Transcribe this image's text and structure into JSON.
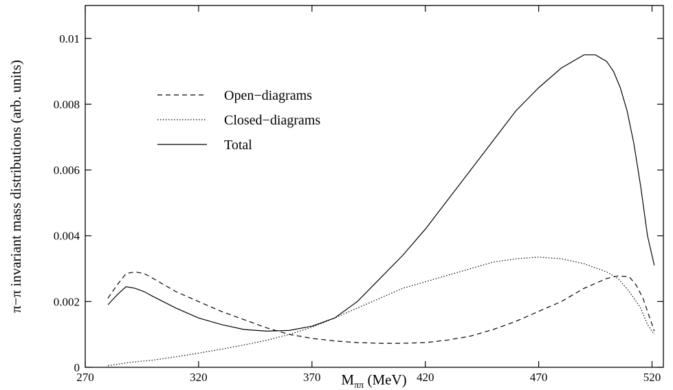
{
  "chart_data": {
    "type": "line",
    "xlabel_main": "M",
    "xlabel_sub": "ππ",
    "xlabel_unit": " (MeV)",
    "ylabel": "π−π invariant mass distributions (arb. units)",
    "xlim": [
      270,
      525
    ],
    "ylim": [
      0,
      0.011
    ],
    "x_ticks": [
      270,
      320,
      370,
      420,
      470,
      520
    ],
    "y_ticks": [
      0,
      0.002,
      0.004,
      0.006,
      0.008,
      0.01
    ],
    "y_tick_labels": [
      "0",
      "0.002",
      "0.004",
      "0.006",
      "0.008",
      "0.01"
    ],
    "grid": false,
    "legend_position": "upper-left",
    "series": [
      {
        "name": "Open−diagrams",
        "style": "dashed",
        "color": "#000000",
        "x": [
          280,
          284,
          288,
          292,
          296,
          300,
          310,
          320,
          330,
          340,
          350,
          360,
          370,
          380,
          390,
          400,
          410,
          420,
          430,
          440,
          450,
          460,
          470,
          480,
          490,
          500,
          505,
          510,
          513,
          516,
          519,
          521
        ],
        "y": [
          0.0021,
          0.0025,
          0.00285,
          0.0029,
          0.00285,
          0.0027,
          0.0023,
          0.002,
          0.0017,
          0.00145,
          0.0012,
          0.001,
          0.00088,
          0.0008,
          0.00075,
          0.00073,
          0.00073,
          0.00075,
          0.00083,
          0.00095,
          0.00115,
          0.0014,
          0.0017,
          0.002,
          0.0024,
          0.0027,
          0.00278,
          0.00275,
          0.0025,
          0.0021,
          0.0015,
          0.0011
        ]
      },
      {
        "name": "Closed−diagrams",
        "style": "dotted",
        "color": "#000000",
        "x": [
          280,
          290,
          300,
          310,
          320,
          330,
          340,
          350,
          360,
          370,
          380,
          390,
          400,
          410,
          420,
          430,
          440,
          450,
          460,
          470,
          480,
          490,
          500,
          505,
          510,
          515,
          518,
          521
        ],
        "y": [
          5e-05,
          0.00015,
          0.00022,
          0.00032,
          0.00043,
          0.00055,
          0.00068,
          0.00082,
          0.001,
          0.00122,
          0.0015,
          0.0018,
          0.0021,
          0.0024,
          0.0026,
          0.0028,
          0.003,
          0.0032,
          0.0033,
          0.00335,
          0.0033,
          0.00315,
          0.0029,
          0.0027,
          0.0023,
          0.0018,
          0.0013,
          0.001
        ]
      },
      {
        "name": "Total",
        "style": "solid",
        "color": "#000000",
        "x": [
          280,
          284,
          288,
          292,
          296,
          300,
          310,
          320,
          330,
          340,
          350,
          360,
          370,
          380,
          390,
          400,
          410,
          420,
          430,
          440,
          450,
          460,
          470,
          480,
          490,
          495,
          500,
          503,
          506,
          509,
          512,
          515,
          518,
          521
        ],
        "y": [
          0.0019,
          0.0022,
          0.00245,
          0.0024,
          0.0023,
          0.00215,
          0.0018,
          0.0015,
          0.0013,
          0.00115,
          0.0011,
          0.00112,
          0.00125,
          0.0015,
          0.002,
          0.0027,
          0.0034,
          0.0042,
          0.0051,
          0.006,
          0.0069,
          0.0078,
          0.0085,
          0.0091,
          0.0095,
          0.0095,
          0.0093,
          0.009,
          0.0085,
          0.0078,
          0.0068,
          0.0055,
          0.004,
          0.0031
        ]
      }
    ]
  }
}
